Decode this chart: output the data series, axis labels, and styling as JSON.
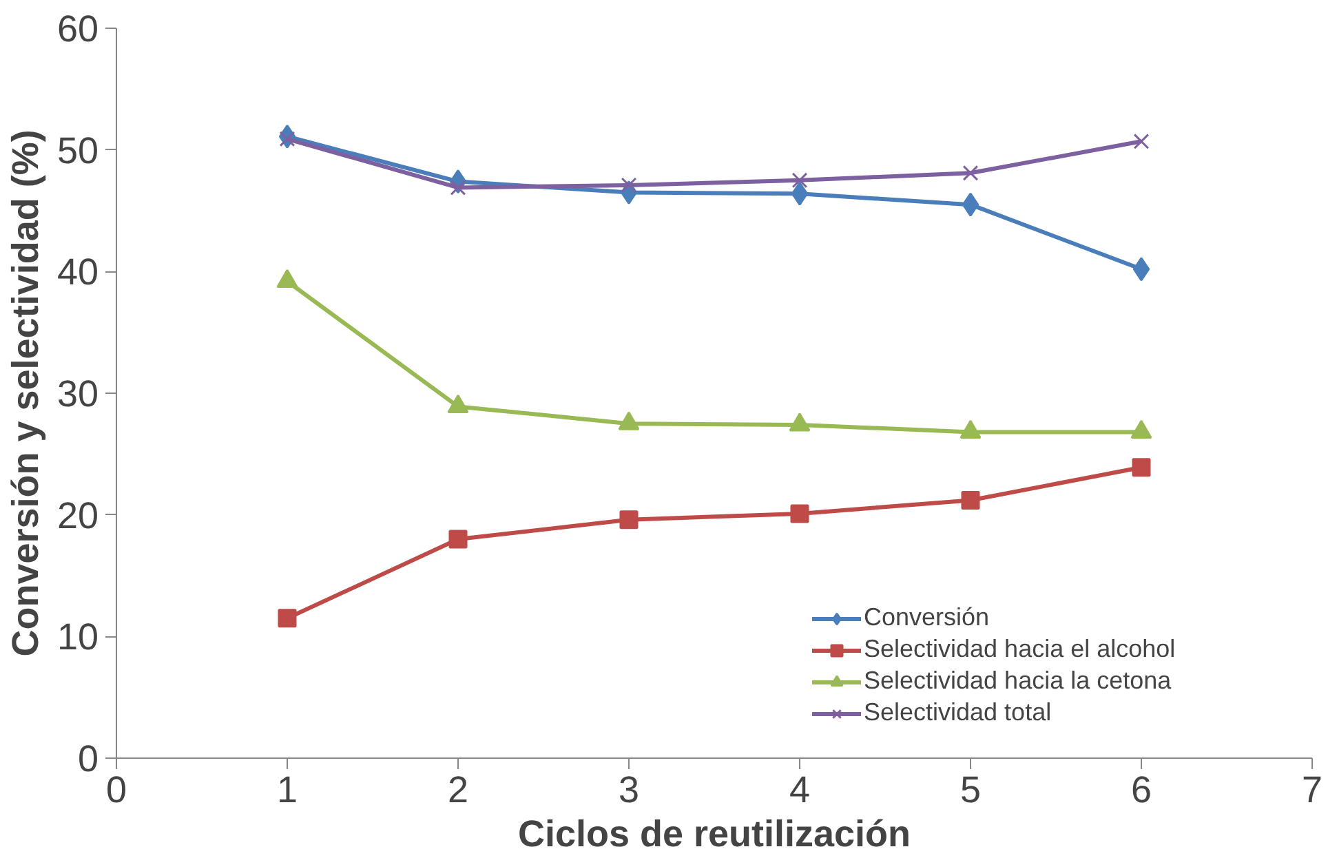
{
  "chart_data": {
    "type": "line",
    "xlabel": "Ciclos de reutilización",
    "ylabel": "Conversión y selectividad (%)",
    "x": [
      1,
      2,
      3,
      4,
      5,
      6
    ],
    "xlim": [
      0,
      7
    ],
    "xticks": [
      0,
      1,
      2,
      3,
      4,
      5,
      6,
      7
    ],
    "ylim": [
      0,
      60
    ],
    "yticks": [
      0,
      10,
      20,
      30,
      40,
      50,
      60
    ],
    "grid": false,
    "legend": "right",
    "line_style": "solid",
    "series": [
      {
        "name": "Conversión",
        "color": "#4a7ebb",
        "marker": "diamond",
        "values": [
          51.1,
          47.4,
          46.5,
          46.4,
          45.5,
          40.2
        ]
      },
      {
        "name": "Selectividad hacia el alcohol",
        "color": "#be4b48",
        "marker": "square",
        "values": [
          11.5,
          18.0,
          19.6,
          20.1,
          21.2,
          23.9
        ]
      },
      {
        "name": "Selectividad hacia la cetona",
        "color": "#98b954",
        "marker": "triangle",
        "values": [
          39.2,
          28.9,
          27.5,
          27.4,
          26.8,
          26.8
        ]
      },
      {
        "name": "Selectividad total",
        "color": "#7d60a0",
        "marker": "cross",
        "values": [
          50.9,
          46.9,
          47.1,
          47.5,
          48.1,
          50.7
        ]
      }
    ]
  }
}
